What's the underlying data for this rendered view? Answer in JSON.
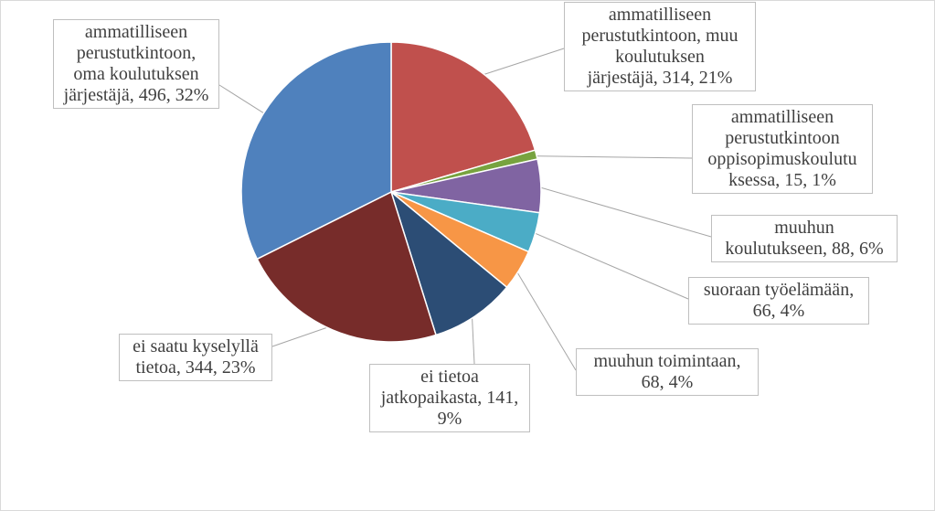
{
  "chart_data": {
    "type": "pie",
    "title": "",
    "slices": [
      {
        "label": "ammatilliseen perustutkintoon, muu koulutuksen järjestäjä",
        "value": 314,
        "percent": "21%",
        "color": "#c0504d",
        "text_lines": [
          "ammatilliseen",
          "perustutkintoon, muu",
          "koulutuksen",
          "järjestäjä, 314, 21%"
        ]
      },
      {
        "label": "ammatilliseen perustutkintoon oppisopimuskoulutuksessa",
        "value": 15,
        "percent": "1%",
        "color": "#77a33f",
        "text_lines": [
          "ammatilliseen",
          "perustutkintoon",
          "oppisopimuskoulutu",
          "ksessa, 15, 1%"
        ]
      },
      {
        "label": "muuhun koulutukseen",
        "value": 88,
        "percent": "6%",
        "color": "#8064a2",
        "text_lines": [
          "muuhun",
          "koulutukseen, 88, 6%"
        ]
      },
      {
        "label": "suoraan työelämään",
        "value": 66,
        "percent": "4%",
        "color": "#4bacc6",
        "text_lines": [
          "suoraan työelämään,",
          "66, 4%"
        ]
      },
      {
        "label": "muuhun toimintaan",
        "value": 68,
        "percent": "4%",
        "color": "#f79646",
        "text_lines": [
          "muuhun toimintaan,",
          "68, 4%"
        ]
      },
      {
        "label": "ei tietoa jatkopaikasta",
        "value": 141,
        "percent": "9%",
        "color": "#2c4d75",
        "text_lines": [
          "ei tietoa",
          "jatkopaikasta, 141,",
          "9%"
        ]
      },
      {
        "label": "ei saatu kyselyllä tietoa",
        "value": 344,
        "percent": "23%",
        "color": "#772c2a",
        "text_lines": [
          "ei saatu kyselyllä",
          "tietoa, 344, 23%"
        ]
      },
      {
        "label": "ammatilliseen perustutkintoon, oma koulutuksen järjestäjä",
        "value": 496,
        "percent": "32%",
        "color": "#4f81bd",
        "text_lines": [
          "ammatilliseen",
          "perustutkintoon,",
          "oma koulutuksen",
          "järjestäjä, 496, 32%"
        ]
      }
    ],
    "legend": "none",
    "data_labels": "outside with leader lines"
  }
}
